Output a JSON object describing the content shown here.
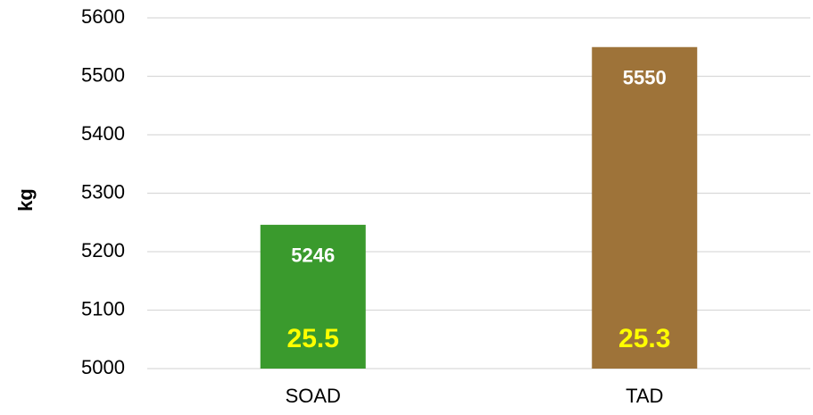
{
  "chart_data": {
    "type": "bar",
    "y_label": "kg",
    "categories": [
      "SOAD",
      "TAD"
    ],
    "values": [
      5246,
      5550
    ],
    "colors": [
      "#3a9a2d",
      "#9e7339"
    ],
    "annotations": [
      25.5,
      25.3
    ],
    "annotation_color": "#ffff00",
    "ylim": [
      5000,
      5600
    ],
    "yticks": [
      5000,
      5100,
      5200,
      5300,
      5400,
      5500,
      5600
    ],
    "grid": true
  }
}
